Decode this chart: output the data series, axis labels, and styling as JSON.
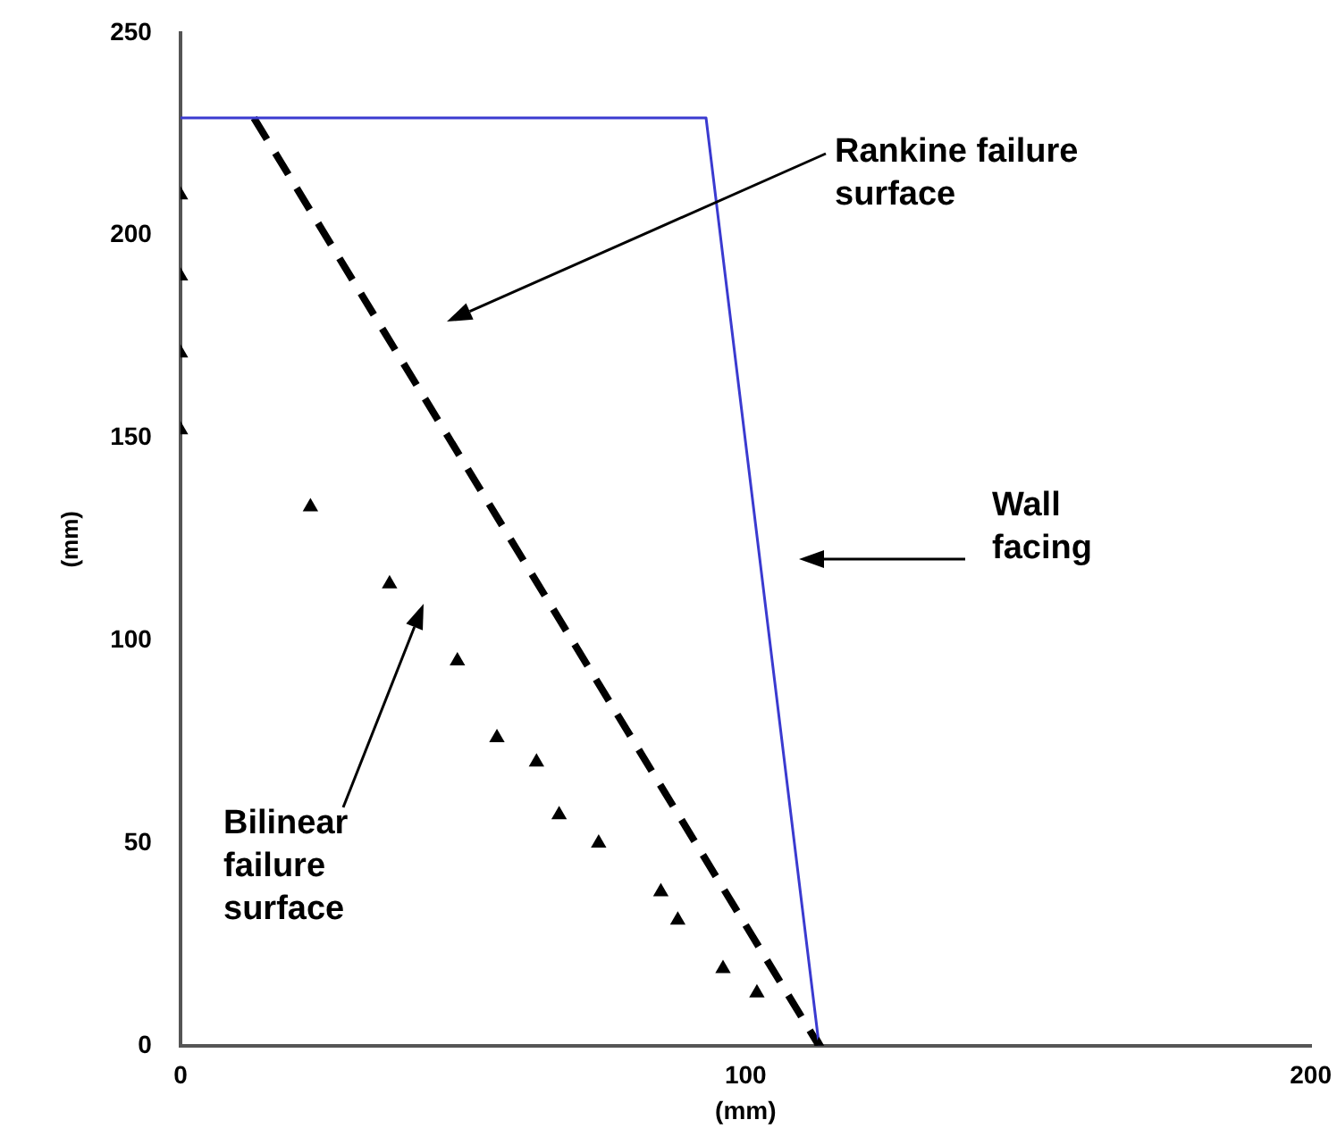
{
  "chart_data": {
    "type": "line",
    "xlabel": "(mm)",
    "ylabel": "(mm)",
    "xlim": [
      0,
      200
    ],
    "xticks": [
      0,
      100,
      200
    ],
    "ylim": [
      0,
      250
    ],
    "yticks": [
      0,
      50,
      100,
      150,
      200,
      250
    ],
    "grid": false,
    "legend": false,
    "series": [
      {
        "color": "#3a3ad0",
        "x": [
          0,
          93,
          113
        ],
        "values": [
          229,
          229,
          0
        ],
        "marker": "none",
        "line_style": "solid"
      },
      {
        "color": "#000000",
        "x": [
          13,
          113
        ],
        "values": [
          229,
          0
        ],
        "marker": "none",
        "line_style": "dashed"
      },
      {
        "type": "scatter",
        "color": "#000000",
        "x": [
          0,
          0,
          0,
          0,
          23,
          37,
          49,
          56,
          63,
          67,
          74,
          85,
          88,
          96,
          102,
          113
        ],
        "values": [
          210,
          190,
          171,
          152,
          133,
          114,
          95,
          76,
          70,
          57,
          50,
          38,
          31,
          19,
          13,
          0
        ],
        "marker": "triangle"
      }
    ],
    "annotations": [
      "Rankine failure surface",
      "Wall facing",
      "Bilinear failure surface"
    ]
  }
}
